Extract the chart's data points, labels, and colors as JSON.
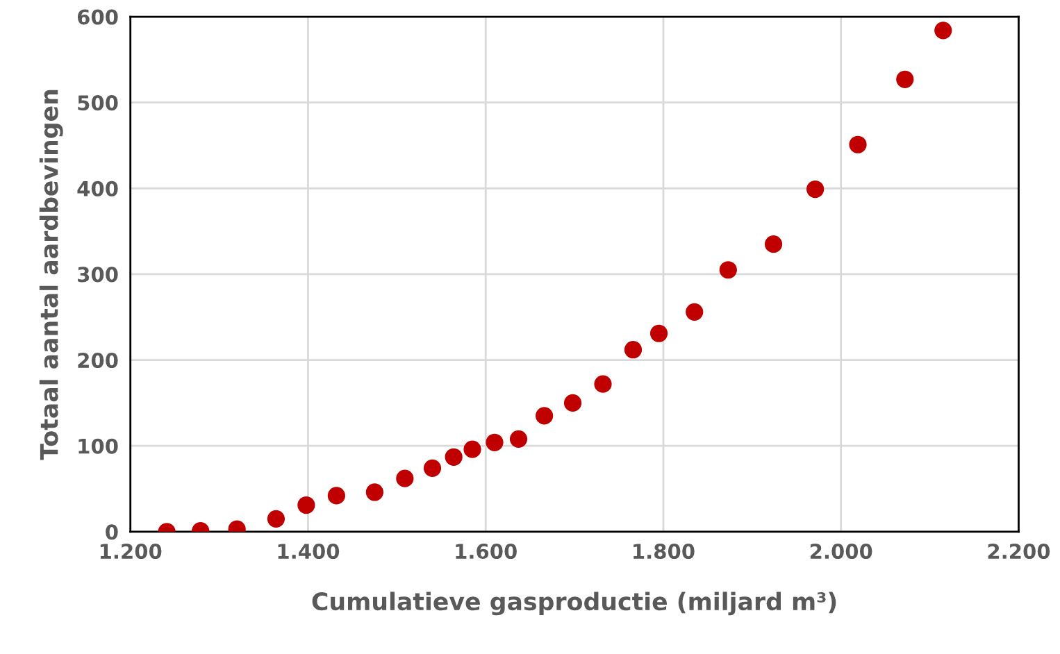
{
  "chart_data": {
    "type": "scatter",
    "xlabel": "Cumulatieve gasproductie (miljard m³)",
    "ylabel": "Totaal aantal aardbevingen",
    "x": [
      1241,
      1279,
      1320,
      1364,
      1398,
      1432,
      1475,
      1509,
      1540,
      1564,
      1585,
      1610,
      1637,
      1666,
      1698,
      1732,
      1766,
      1795,
      1835,
      1873,
      1924,
      1971,
      2019,
      2072,
      2115
    ],
    "values": [
      0,
      1,
      3,
      15,
      31,
      42,
      46,
      62,
      74,
      87,
      96,
      104,
      108,
      135,
      150,
      172,
      212,
      231,
      256,
      305,
      335,
      399,
      451,
      527,
      584
    ],
    "color": "#c00000",
    "marker": "circle",
    "xlim": [
      1200,
      2200
    ],
    "xticks": [
      {
        "value": 1200,
        "label": "1.200"
      },
      {
        "value": 1400,
        "label": "1.400"
      },
      {
        "value": 1600,
        "label": "1.600"
      },
      {
        "value": 1800,
        "label": "1.800"
      },
      {
        "value": 2000,
        "label": "2.000"
      },
      {
        "value": 2200,
        "label": "2.200"
      }
    ],
    "ylim": [
      0,
      600
    ],
    "yticks": [
      0,
      100,
      200,
      300,
      400,
      500,
      600
    ],
    "grid": true,
    "legend": false
  }
}
